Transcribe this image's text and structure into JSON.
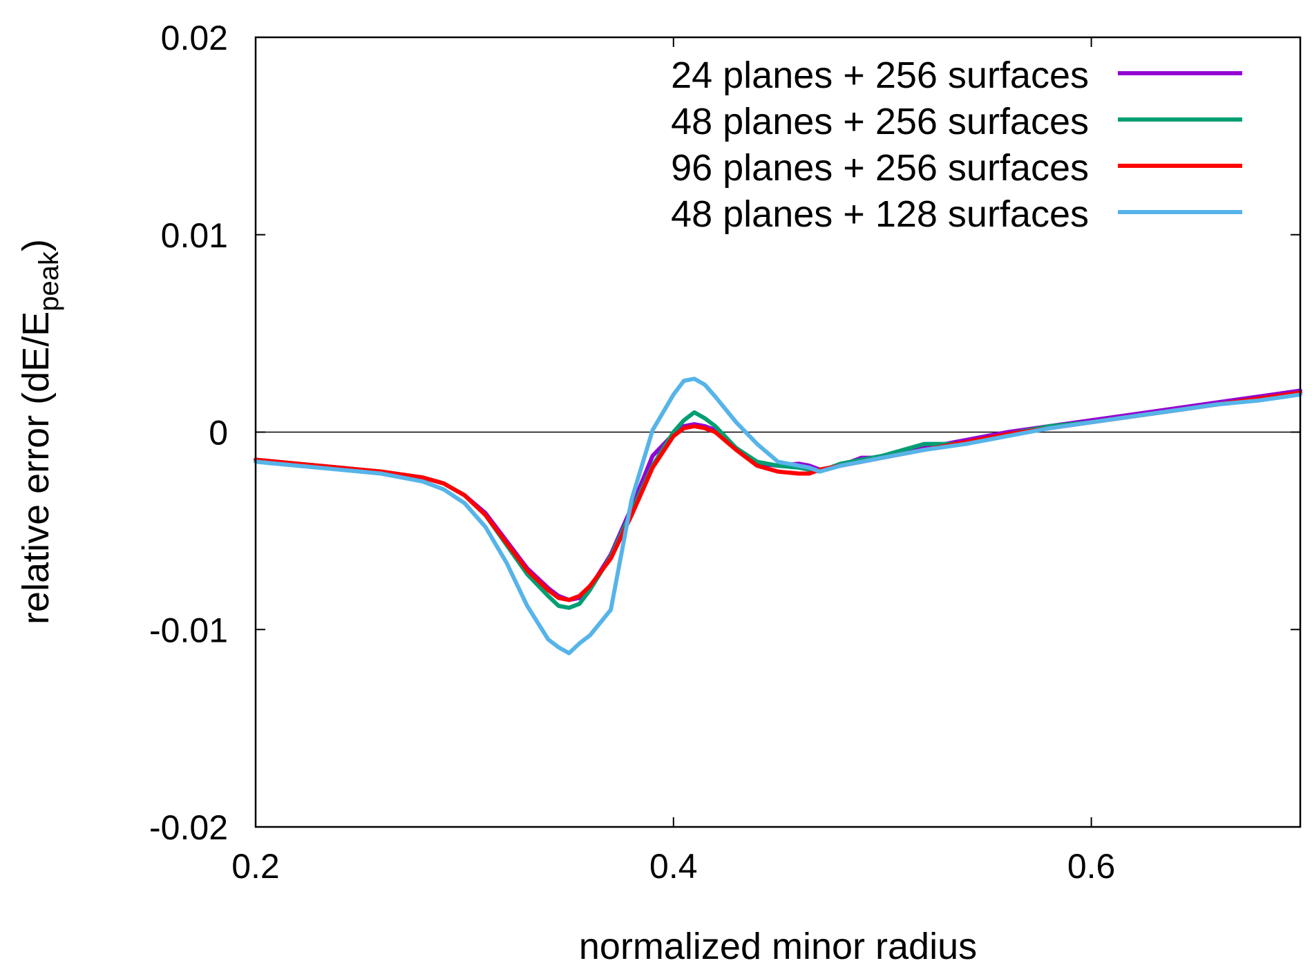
{
  "chart_data": {
    "type": "line",
    "title": "",
    "xlabel": "normalized minor radius",
    "ylabel": {
      "prefix": "relative error (dE/E",
      "subscript": "peak",
      "suffix": ")"
    },
    "xlim": [
      0.2,
      0.7
    ],
    "ylim": [
      -0.02,
      0.02
    ],
    "xticks": [
      {
        "value": 0.2,
        "label": "0.2"
      },
      {
        "value": 0.4,
        "label": "0.4"
      },
      {
        "value": 0.6,
        "label": "0.6"
      }
    ],
    "yticks": [
      {
        "value": -0.02,
        "label": "-0.02"
      },
      {
        "value": -0.01,
        "label": "-0.01"
      },
      {
        "value": 0,
        "label": "0"
      },
      {
        "value": 0.01,
        "label": "0.01"
      },
      {
        "value": 0.02,
        "label": "0.02"
      }
    ],
    "zero_line": true,
    "grid": false,
    "legend_position": "top-right",
    "series": [
      {
        "name": "24 planes + 256 surfaces",
        "color": "#9400d3",
        "x": [
          0.2,
          0.22,
          0.24,
          0.26,
          0.28,
          0.29,
          0.3,
          0.31,
          0.32,
          0.33,
          0.34,
          0.345,
          0.35,
          0.355,
          0.36,
          0.37,
          0.38,
          0.39,
          0.4,
          0.405,
          0.41,
          0.415,
          0.42,
          0.43,
          0.44,
          0.45,
          0.46,
          0.465,
          0.47,
          0.48,
          0.49,
          0.5,
          0.52,
          0.54,
          0.56,
          0.58,
          0.6,
          0.62,
          0.64,
          0.66,
          0.68,
          0.7
        ],
        "y": [
          -0.0014,
          -0.0016,
          -0.0018,
          -0.002,
          -0.0023,
          -0.0026,
          -0.0032,
          -0.0041,
          -0.0055,
          -0.0069,
          -0.0079,
          -0.0083,
          -0.0085,
          -0.0084,
          -0.0079,
          -0.0062,
          -0.0038,
          -0.0012,
          -0.0001,
          0.0003,
          0.0004,
          0.0003,
          0.0001,
          -0.0008,
          -0.0016,
          -0.0017,
          -0.0016,
          -0.0017,
          -0.0019,
          -0.0017,
          -0.0013,
          -0.0013,
          -0.0008,
          -0.0004,
          0.0,
          0.0003,
          0.0006,
          0.0009,
          0.0012,
          0.0015,
          0.0018,
          0.0021
        ]
      },
      {
        "name": "48 planes + 256 surfaces",
        "color": "#009e73",
        "x": [
          0.2,
          0.22,
          0.24,
          0.26,
          0.28,
          0.29,
          0.3,
          0.31,
          0.32,
          0.33,
          0.34,
          0.345,
          0.35,
          0.355,
          0.36,
          0.37,
          0.38,
          0.39,
          0.4,
          0.405,
          0.41,
          0.415,
          0.42,
          0.43,
          0.44,
          0.45,
          0.46,
          0.465,
          0.47,
          0.48,
          0.49,
          0.5,
          0.52,
          0.54,
          0.56,
          0.58,
          0.6,
          0.62,
          0.64,
          0.66,
          0.68,
          0.7
        ],
        "y": [
          -0.0014,
          -0.0016,
          -0.0018,
          -0.002,
          -0.0023,
          -0.0026,
          -0.0032,
          -0.0042,
          -0.0057,
          -0.0072,
          -0.0083,
          -0.0088,
          -0.0089,
          -0.0087,
          -0.008,
          -0.0063,
          -0.004,
          -0.0017,
          0.0,
          0.0006,
          0.001,
          0.0007,
          0.0003,
          -0.0008,
          -0.0015,
          -0.0017,
          -0.0018,
          -0.0019,
          -0.002,
          -0.0016,
          -0.0014,
          -0.0012,
          -0.0006,
          -0.0006,
          -0.0001,
          0.0003,
          0.0005,
          0.0008,
          0.0011,
          0.0014,
          0.0017,
          0.002
        ]
      },
      {
        "name": "96 planes + 256 surfaces",
        "color": "#ff0000",
        "x": [
          0.2,
          0.22,
          0.24,
          0.26,
          0.28,
          0.29,
          0.3,
          0.31,
          0.32,
          0.33,
          0.34,
          0.345,
          0.35,
          0.355,
          0.36,
          0.37,
          0.38,
          0.39,
          0.4,
          0.405,
          0.41,
          0.415,
          0.42,
          0.43,
          0.44,
          0.45,
          0.46,
          0.465,
          0.47,
          0.48,
          0.49,
          0.5,
          0.52,
          0.54,
          0.56,
          0.58,
          0.6,
          0.62,
          0.64,
          0.66,
          0.68,
          0.7
        ],
        "y": [
          -0.0014,
          -0.0016,
          -0.0018,
          -0.002,
          -0.0023,
          -0.0026,
          -0.0032,
          -0.0042,
          -0.0056,
          -0.007,
          -0.008,
          -0.0084,
          -0.0085,
          -0.0083,
          -0.0078,
          -0.0064,
          -0.0042,
          -0.0018,
          -0.0002,
          0.0002,
          0.0003,
          0.0002,
          0.0,
          -0.0009,
          -0.0017,
          -0.002,
          -0.0021,
          -0.0021,
          -0.0019,
          -0.0017,
          -0.0015,
          -0.0013,
          -0.0009,
          -0.0005,
          -0.0001,
          0.0002,
          0.0005,
          0.0008,
          0.0011,
          0.0014,
          0.0017,
          0.002
        ]
      },
      {
        "name": "48 planes + 128 surfaces",
        "color": "#56b4e9",
        "x": [
          0.2,
          0.22,
          0.24,
          0.26,
          0.28,
          0.29,
          0.3,
          0.31,
          0.32,
          0.33,
          0.34,
          0.345,
          0.35,
          0.355,
          0.36,
          0.37,
          0.38,
          0.39,
          0.4,
          0.405,
          0.41,
          0.415,
          0.42,
          0.43,
          0.44,
          0.45,
          0.46,
          0.465,
          0.47,
          0.48,
          0.49,
          0.5,
          0.52,
          0.54,
          0.56,
          0.58,
          0.6,
          0.62,
          0.64,
          0.66,
          0.68,
          0.7
        ],
        "y": [
          -0.0015,
          -0.0017,
          -0.0019,
          -0.0021,
          -0.0025,
          -0.0029,
          -0.0036,
          -0.0048,
          -0.0066,
          -0.0088,
          -0.0105,
          -0.0109,
          -0.0112,
          -0.0107,
          -0.0103,
          -0.009,
          -0.0034,
          0.0001,
          0.0019,
          0.0026,
          0.0027,
          0.0024,
          0.0018,
          0.0005,
          -0.0006,
          -0.0015,
          -0.0017,
          -0.0018,
          -0.002,
          -0.0017,
          -0.0015,
          -0.0013,
          -0.0009,
          -0.0006,
          -0.0002,
          0.0002,
          0.0005,
          0.0008,
          0.0011,
          0.0014,
          0.0016,
          0.0019
        ]
      }
    ]
  }
}
